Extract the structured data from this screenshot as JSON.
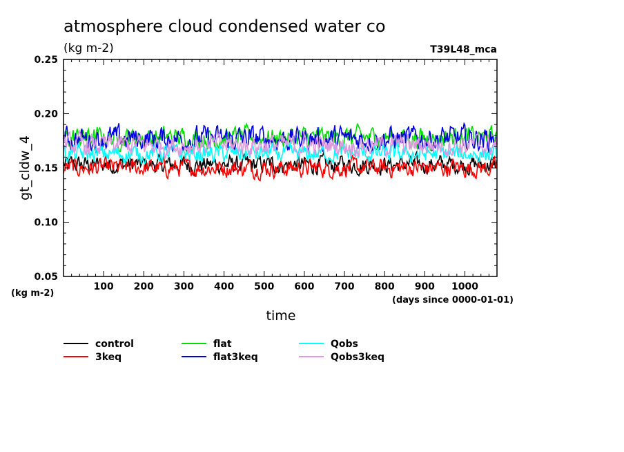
{
  "chart_data": {
    "type": "line",
    "title": "atmosphere cloud condensed water co",
    "units_label": "(kg m-2)",
    "run_label": "T39L48_mca",
    "ylabel": "gt_cldw_4",
    "y_unit_label": "(kg m-2)",
    "xlabel": "time",
    "x_unit_label": "(days since 0000-01-01)",
    "xlim": [
      0,
      1080
    ],
    "ylim": [
      0.05,
      0.25
    ],
    "x_ticks": [
      "100",
      "200",
      "300",
      "400",
      "500",
      "600",
      "700",
      "800",
      "900",
      "1000"
    ],
    "y_ticks": [
      "0.05",
      "0.10",
      "0.15",
      "0.20",
      "0.25"
    ],
    "legend_position": "bottom",
    "series": [
      {
        "name": "control",
        "color": "#000000",
        "mean": 0.153,
        "noise": 0.006
      },
      {
        "name": "3keq",
        "color": "#ff0000",
        "mean": 0.15,
        "noise": 0.006
      },
      {
        "name": "flat",
        "color": "#00dd00",
        "mean": 0.178,
        "noise": 0.007
      },
      {
        "name": "flat3keq",
        "color": "#0000dd",
        "mean": 0.177,
        "noise": 0.008
      },
      {
        "name": "Qobs",
        "color": "#00ffff",
        "mean": 0.163,
        "noise": 0.006
      },
      {
        "name": "Qobs3keq",
        "color": "#dd99dd",
        "mean": 0.171,
        "noise": 0.007
      }
    ]
  }
}
